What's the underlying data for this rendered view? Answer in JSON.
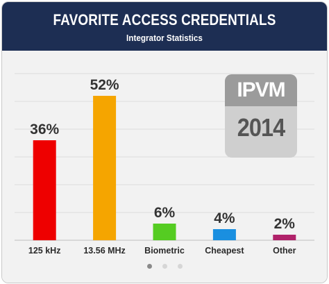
{
  "header": {
    "title": "FAVORITE ACCESS CREDENTIALS",
    "subtitle": "Integrator Statistics",
    "background": "#1d2e53"
  },
  "badge": {
    "brand": "IPVM",
    "year": "2014"
  },
  "chart_data": {
    "type": "bar",
    "title": "FAVORITE ACCESS CREDENTIALS",
    "subtitle": "Integrator Statistics",
    "categories": [
      "125 kHz",
      "13.56 MHz",
      "Biometric",
      "Cheapest",
      "Other"
    ],
    "values": [
      36,
      52,
      6,
      4,
      2
    ],
    "value_labels": [
      "36%",
      "52%",
      "6%",
      "4%",
      "2%"
    ],
    "colors": [
      "#ee0000",
      "#f5a500",
      "#55cc22",
      "#1a8fe0",
      "#b0226a"
    ],
    "ylim": [
      0,
      60
    ],
    "grid": true,
    "unit": "%"
  },
  "pagination": {
    "count": 3,
    "active": 0
  }
}
